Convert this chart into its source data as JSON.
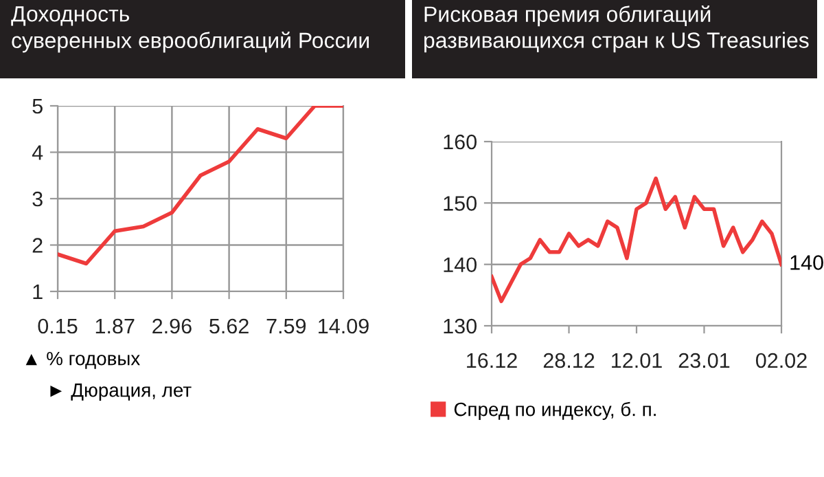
{
  "chart_data": [
    {
      "type": "line",
      "title": "Доходность\nсуверенных еврооблигаций России",
      "ylabel": "▲ % годовых",
      "xlabel": "► Дюрация, лет",
      "categories": [
        "0.15",
        null,
        "1.87",
        null,
        "2.96",
        null,
        "5.62",
        null,
        "7.59",
        null,
        "14.09"
      ],
      "series": [
        {
          "color": "#ee3b3b",
          "values": [
            1.8,
            1.6,
            2.3,
            2.4,
            2.7,
            3.5,
            3.8,
            4.5,
            4.3,
            5.0,
            5.0
          ]
        }
      ],
      "ylim": [
        1,
        5
      ],
      "yticks": [
        1,
        2,
        3,
        4,
        5
      ],
      "grid": true,
      "marker": "none",
      "line_style": "solid"
    },
    {
      "type": "line",
      "title": "Рисковая премия облигаций\nразвивающихся стран к US Treasuries",
      "categories": [
        "16.12",
        null,
        null,
        null,
        null,
        null,
        null,
        null,
        "28.12",
        null,
        null,
        null,
        null,
        null,
        null,
        "12.01",
        null,
        null,
        null,
        null,
        null,
        null,
        "23.01",
        null,
        null,
        null,
        null,
        null,
        null,
        null,
        "02.02"
      ],
      "series": [
        {
          "name": "Спред по индексу, б. п.",
          "color": "#ee3b3b",
          "values": [
            138,
            134,
            137,
            140,
            141,
            144,
            142,
            142,
            145,
            143,
            144,
            143,
            147,
            146,
            141,
            149,
            150,
            154,
            149,
            151,
            146,
            151,
            149,
            149,
            143,
            146,
            142,
            144,
            147,
            145,
            140
          ]
        }
      ],
      "annotations": [
        {
          "text": "140",
          "x": "02.02",
          "y": 140
        }
      ],
      "ylim": [
        130,
        160
      ],
      "yticks": [
        130,
        140,
        150,
        160
      ],
      "grid": "y",
      "legend": "bottom",
      "marker": "none",
      "line_style": "solid"
    }
  ]
}
